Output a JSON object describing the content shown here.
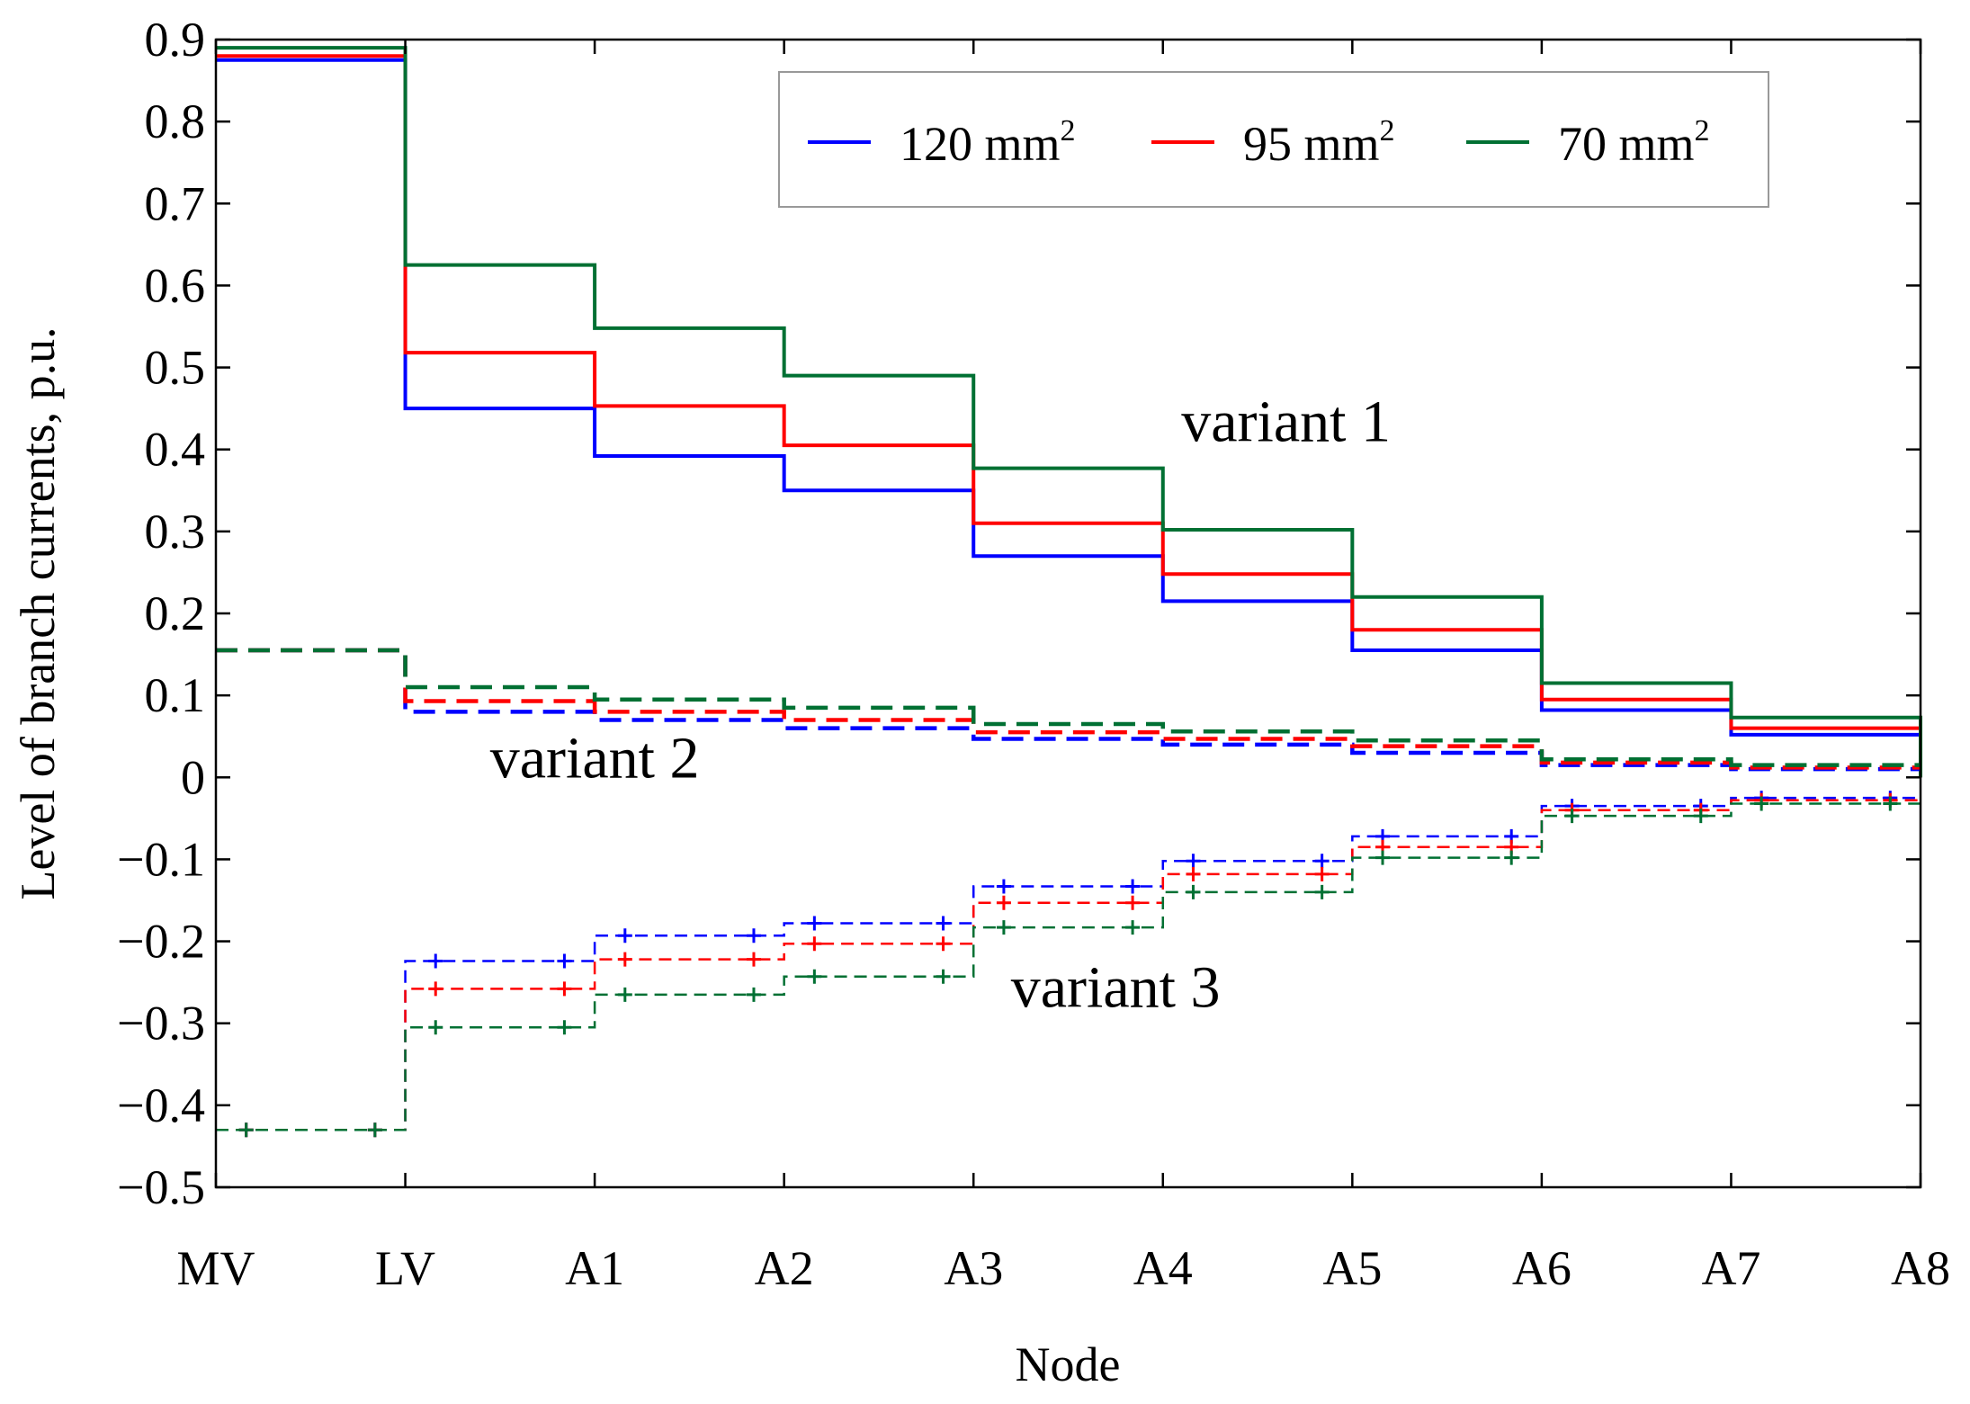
{
  "chart_data": {
    "type": "line",
    "step": "post",
    "title": "",
    "xlabel": "Node",
    "ylabel": "Level of branch currents, p.u.",
    "categories": [
      "MV",
      "LV",
      "A1",
      "A2",
      "A3",
      "A4",
      "A5",
      "A6",
      "A7",
      "A8"
    ],
    "ylim": [
      -0.5,
      0.9
    ],
    "yticks": [
      0.9,
      0.8,
      0.7,
      0.6,
      0.5,
      0.4,
      0.3,
      0.2,
      0.1,
      0,
      -0.1,
      -0.2,
      -0.3,
      -0.4,
      -0.5
    ],
    "ytick_labels": [
      "0.9",
      "0.8",
      "0.7",
      "0.6",
      "0.5",
      "0.4",
      "0.3",
      "0.2",
      "0.1",
      "0",
      "−0.1",
      "−0.2",
      "−0.3",
      "−0.4",
      "−0.5"
    ],
    "grid": false,
    "legend": {
      "position": "top-right",
      "entries": [
        {
          "label": "120 mm",
          "sup": "2",
          "color": "#0000ff"
        },
        {
          "label": "95 mm",
          "sup": "2",
          "color": "#ff0000"
        },
        {
          "label": "70 mm",
          "sup": "2",
          "color": "#007033"
        }
      ]
    },
    "annotations": [
      {
        "text": "variant 1",
        "x": 5.65,
        "y": 0.41
      },
      {
        "text": "variant 2",
        "x": 2.0,
        "y": 0.0
      },
      {
        "text": "variant 3",
        "x": 4.75,
        "y": -0.28
      }
    ],
    "series": [
      {
        "name": "120 mm²",
        "variant": "variant 1",
        "color": "#0000ff",
        "style": "solid",
        "values": [
          0.875,
          0.45,
          0.392,
          0.35,
          0.27,
          0.215,
          0.155,
          0.082,
          0.052,
          0.0
        ]
      },
      {
        "name": "95 mm²",
        "variant": "variant 1",
        "color": "#ff0000",
        "style": "solid",
        "values": [
          0.88,
          0.518,
          0.453,
          0.405,
          0.31,
          0.248,
          0.18,
          0.095,
          0.06,
          0.0
        ]
      },
      {
        "name": "70 mm²",
        "variant": "variant 1",
        "color": "#007033",
        "style": "solid",
        "values": [
          0.89,
          0.625,
          0.548,
          0.49,
          0.377,
          0.302,
          0.22,
          0.115,
          0.073,
          0.0
        ]
      },
      {
        "name": "120 mm²",
        "variant": "variant 2",
        "color": "#0000ff",
        "style": "dashed",
        "values": [
          0.155,
          0.08,
          0.07,
          0.06,
          0.047,
          0.04,
          0.03,
          0.015,
          0.01,
          0.01
        ]
      },
      {
        "name": "95 mm²",
        "variant": "variant 2",
        "color": "#ff0000",
        "style": "dashed",
        "values": [
          0.155,
          0.093,
          0.08,
          0.07,
          0.055,
          0.047,
          0.038,
          0.018,
          0.012,
          0.012
        ]
      },
      {
        "name": "70 mm²",
        "variant": "variant 2",
        "color": "#007033",
        "style": "dashed",
        "values": [
          0.155,
          0.11,
          0.095,
          0.085,
          0.065,
          0.056,
          0.045,
          0.022,
          0.015,
          0.015
        ]
      },
      {
        "name": "120 mm²",
        "variant": "variant 3",
        "color": "#0000ff",
        "style": "dashed-markers",
        "values": [
          -0.43,
          -0.224,
          -0.193,
          -0.178,
          -0.133,
          -0.102,
          -0.072,
          -0.035,
          -0.025,
          -0.025
        ]
      },
      {
        "name": "95 mm²",
        "variant": "variant 3",
        "color": "#ff0000",
        "style": "dashed-markers",
        "values": [
          -0.43,
          -0.258,
          -0.222,
          -0.203,
          -0.153,
          -0.118,
          -0.085,
          -0.04,
          -0.028,
          -0.028
        ]
      },
      {
        "name": "70 mm²",
        "variant": "variant 3",
        "color": "#007033",
        "style": "dashed-markers",
        "values": [
          -0.43,
          -0.305,
          -0.265,
          -0.243,
          -0.183,
          -0.14,
          -0.098,
          -0.047,
          -0.032,
          -0.032
        ]
      }
    ]
  }
}
